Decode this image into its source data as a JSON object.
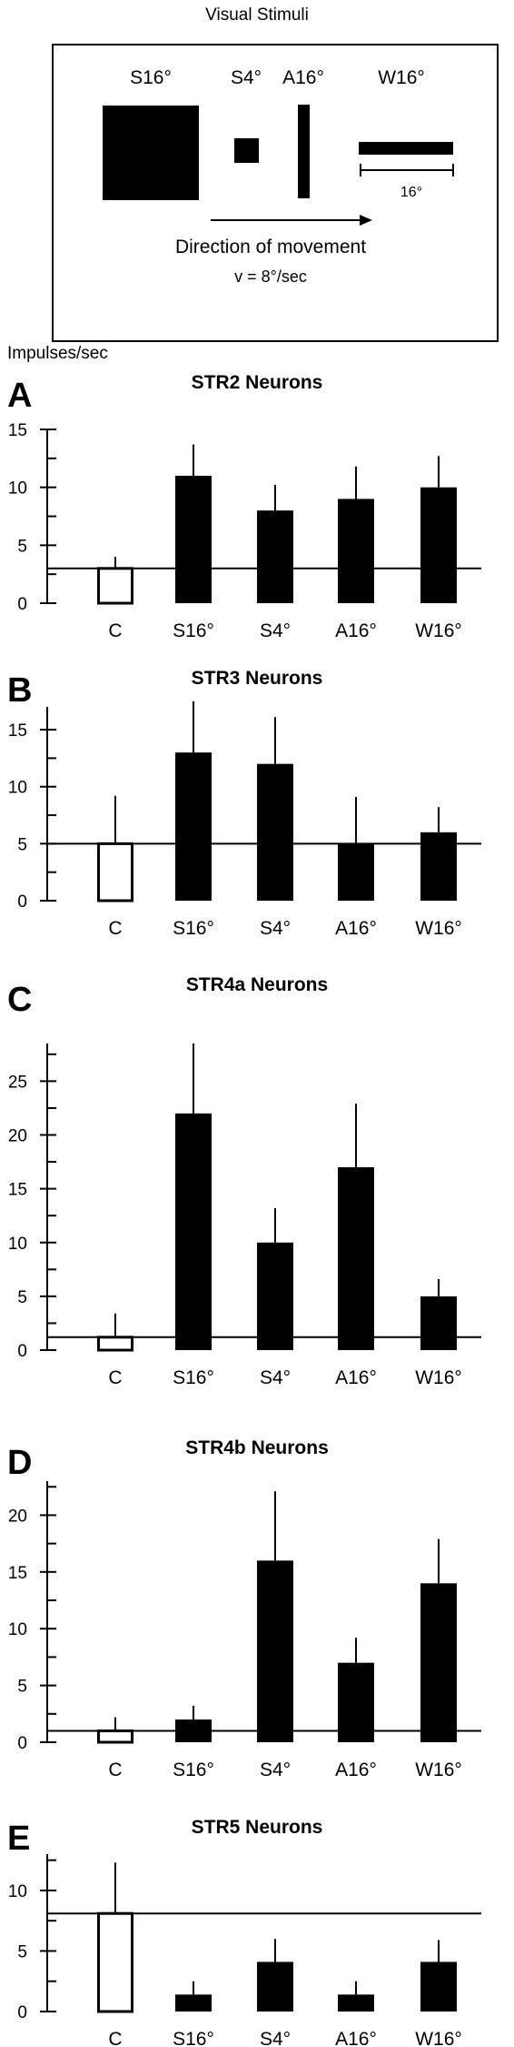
{
  "stimuli": {
    "title": "Visual Stimuli",
    "labels": [
      "S16°",
      "S4°",
      "A16°",
      "W16°"
    ],
    "scale_label": "16°",
    "direction_label": "Direction of movement",
    "velocity_label": "v =  8°/sec"
  },
  "y_axis_label": "Impulses/sec",
  "chart_data": [
    {
      "panel": "A",
      "type": "bar",
      "title": "STR2 Neurons",
      "categories": [
        "C",
        "S16°",
        "S4°",
        "A16°",
        "W16°"
      ],
      "values": [
        3,
        11,
        8,
        9,
        10
      ],
      "errors": [
        1,
        2.7,
        2.2,
        2.8,
        2.7
      ],
      "ylim": [
        0,
        15
      ],
      "yticks": [
        0,
        5,
        10,
        15
      ],
      "baseline": 3,
      "legend": "none",
      "grid": false
    },
    {
      "panel": "B",
      "type": "bar",
      "title": "STR3 Neurons",
      "categories": [
        "C",
        "S16°",
        "S4°",
        "A16°",
        "W16°"
      ],
      "values": [
        5,
        13,
        12,
        5,
        6
      ],
      "errors": [
        4.2,
        4.5,
        4.1,
        4.1,
        2.2
      ],
      "ylim": [
        0,
        17
      ],
      "yticks": [
        0,
        5,
        10,
        15
      ],
      "baseline": 5,
      "legend": "none",
      "grid": false
    },
    {
      "panel": "C",
      "type": "bar",
      "title": "STR4a Neurons",
      "categories": [
        "C",
        "S16°",
        "S4°",
        "A16°",
        "W16°"
      ],
      "values": [
        1.2,
        22,
        10,
        17,
        5
      ],
      "errors": [
        2.2,
        6.5,
        3.2,
        5.9,
        1.6
      ],
      "ylim": [
        0,
        28.5
      ],
      "yticks": [
        0,
        5,
        10,
        15,
        20,
        25
      ],
      "baseline": 1.2,
      "legend": "none",
      "grid": false
    },
    {
      "panel": "D",
      "type": "bar",
      "title": "STR4b Neurons",
      "categories": [
        "C",
        "S16°",
        "S4°",
        "A16°",
        "W16°"
      ],
      "values": [
        1,
        2,
        16,
        7,
        14
      ],
      "errors": [
        1.2,
        1.2,
        6.1,
        2.2,
        3.9
      ],
      "ylim": [
        0,
        23
      ],
      "yticks": [
        0,
        5,
        10,
        15,
        20
      ],
      "baseline": 1,
      "legend": "none",
      "grid": false
    },
    {
      "panel": "E",
      "type": "bar",
      "title": "STR5 Neurons",
      "categories": [
        "C",
        "S16°",
        "S4°",
        "A16°",
        "W16°"
      ],
      "values": [
        8.1,
        1.4,
        4.1,
        1.4,
        4.1
      ],
      "errors": [
        4.2,
        1.1,
        1.9,
        1.1,
        1.8
      ],
      "ylim": [
        0,
        13
      ],
      "yticks": [
        0,
        5,
        10
      ],
      "baseline": 8.1,
      "legend": "none",
      "grid": false
    }
  ]
}
